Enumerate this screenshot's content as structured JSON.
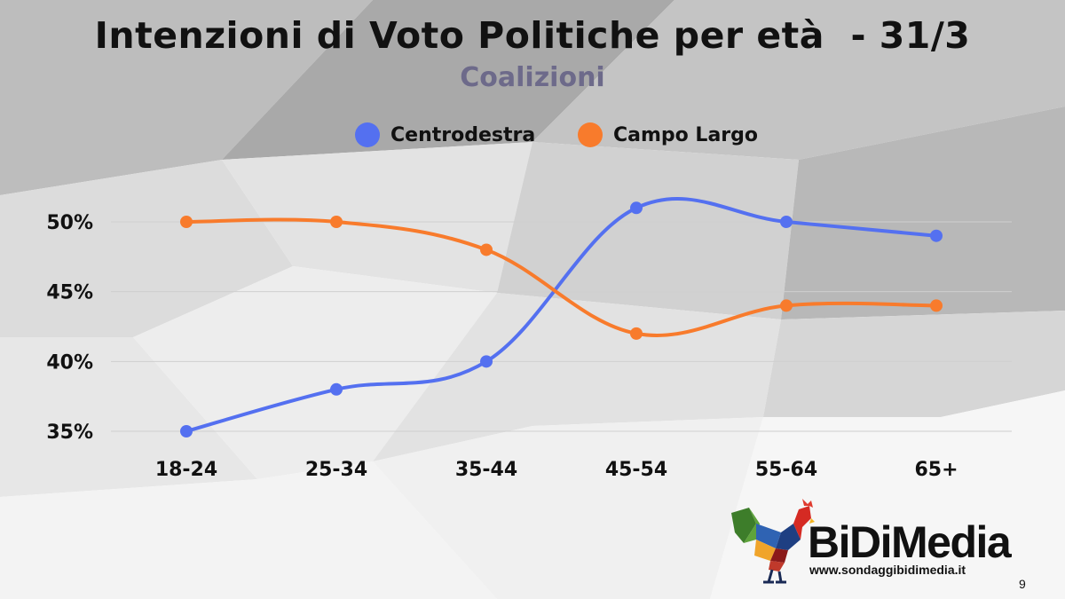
{
  "title": "Intenzioni di Voto Politiche per età  - 31/3",
  "subtitle": "Coalizioni",
  "colors": {
    "centrodestra": "#5470f0",
    "campo_largo": "#f87b2c",
    "grid": "#cfcfcf"
  },
  "legend": [
    {
      "label": "Centrodestra",
      "color": "#5470f0"
    },
    {
      "label": "Campo Largo",
      "color": "#f87b2c"
    }
  ],
  "chart_data": {
    "type": "line",
    "title": "Intenzioni di Voto Politiche per età  - 31/3",
    "subtitle": "Coalizioni",
    "categories": [
      "18-24",
      "25-34",
      "35-44",
      "45-54",
      "55-64",
      "65+"
    ],
    "series": [
      {
        "name": "Centrodestra",
        "values": [
          35,
          38,
          40,
          51,
          50,
          49
        ]
      },
      {
        "name": "Campo Largo",
        "values": [
          50,
          50,
          48,
          42,
          44,
          44
        ]
      }
    ],
    "yticks": [
      "35%",
      "40%",
      "45%",
      "50%"
    ],
    "ytick_values": [
      35,
      40,
      45,
      50
    ],
    "ylim": [
      35,
      50
    ],
    "xlabel": "",
    "ylabel": "",
    "grid": true,
    "legend_position": "top-center"
  },
  "logo": {
    "brand": "BiDiMedia",
    "site": "www.sondaggibidimedia.it"
  },
  "page_number": "9"
}
